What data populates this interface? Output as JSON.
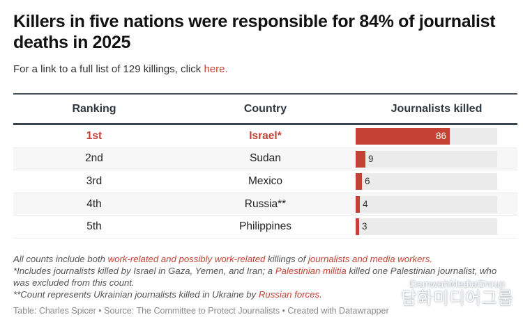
{
  "title": "Killers in five nations were responsible for 84% of journalist deaths in 2025",
  "subtitle": {
    "text": "For a link to a full list of 129 killings, click ",
    "link_label": "here."
  },
  "colors": {
    "accent": "#c44235",
    "bar_track": "#ebebeb",
    "header_rule": "#3a434c"
  },
  "table": {
    "headers": [
      "Ranking",
      "Country",
      "Journalists killed"
    ],
    "rows": [
      {
        "rank": "1st",
        "country": "Israel*",
        "killed": 86,
        "label": "86",
        "highlight": true
      },
      {
        "rank": "2nd",
        "country": "Sudan",
        "killed": 9,
        "label": "9",
        "highlight": false
      },
      {
        "rank": "3rd",
        "country": "Mexico",
        "killed": 6,
        "label": "6",
        "highlight": false
      },
      {
        "rank": "4th",
        "country": "Russia**",
        "killed": 4,
        "label": "4",
        "highlight": false
      },
      {
        "rank": "5th",
        "country": "Philippines",
        "killed": 3,
        "label": "3",
        "highlight": false
      }
    ]
  },
  "chart_data": {
    "type": "table",
    "title": "Killers in five nations were responsible for 84% of journalist deaths in 2025",
    "columns": [
      "Ranking",
      "Country",
      "Journalists killed"
    ],
    "categories": [
      "Israel*",
      "Sudan",
      "Mexico",
      "Russia**",
      "Philippines"
    ],
    "values": [
      86,
      9,
      6,
      4,
      3
    ],
    "ranks": [
      "1st",
      "2nd",
      "3rd",
      "4th",
      "5th"
    ],
    "bar_max": 129
  },
  "notes": {
    "line1_a": "All counts include both ",
    "line1_link1": "work-related and possibly work-related",
    "line1_b": " killings of ",
    "line1_link2": "journalists and media workers.",
    "line2_a": "*Includes journalists killed by Israel in Gaza, Yemen, and Iran; a ",
    "line2_link": "Palestinian militia",
    "line2_b": " killed one Palestinian journalist, who was excluded from this count.",
    "line3_a": "**Count represents Ukrainian journalists killed in Ukraine by ",
    "line3_link": "Russian forces."
  },
  "credit": "Table: Charles Spicer • Source: The Committee to Protect Journalists • Created with Datawrapper",
  "watermark": {
    "english": "DamwahMediaGroup",
    "korean": "담화미디어그룹"
  }
}
